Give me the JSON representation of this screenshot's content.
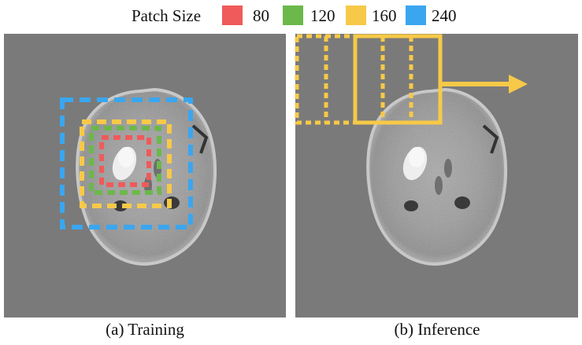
{
  "legend": {
    "title": "Patch Size",
    "items": [
      {
        "label": "80",
        "color": "#f05a5a"
      },
      {
        "label": "120",
        "color": "#6cb84a"
      },
      {
        "label": "160",
        "color": "#f7c948"
      },
      {
        "label": "240",
        "color": "#3aa6f0"
      }
    ]
  },
  "panels": {
    "left": {
      "caption": "(a) Training"
    },
    "right": {
      "caption": "(b) Inference"
    }
  },
  "colors": {
    "background": "#7a7a7a",
    "inference": "#f7c948"
  }
}
